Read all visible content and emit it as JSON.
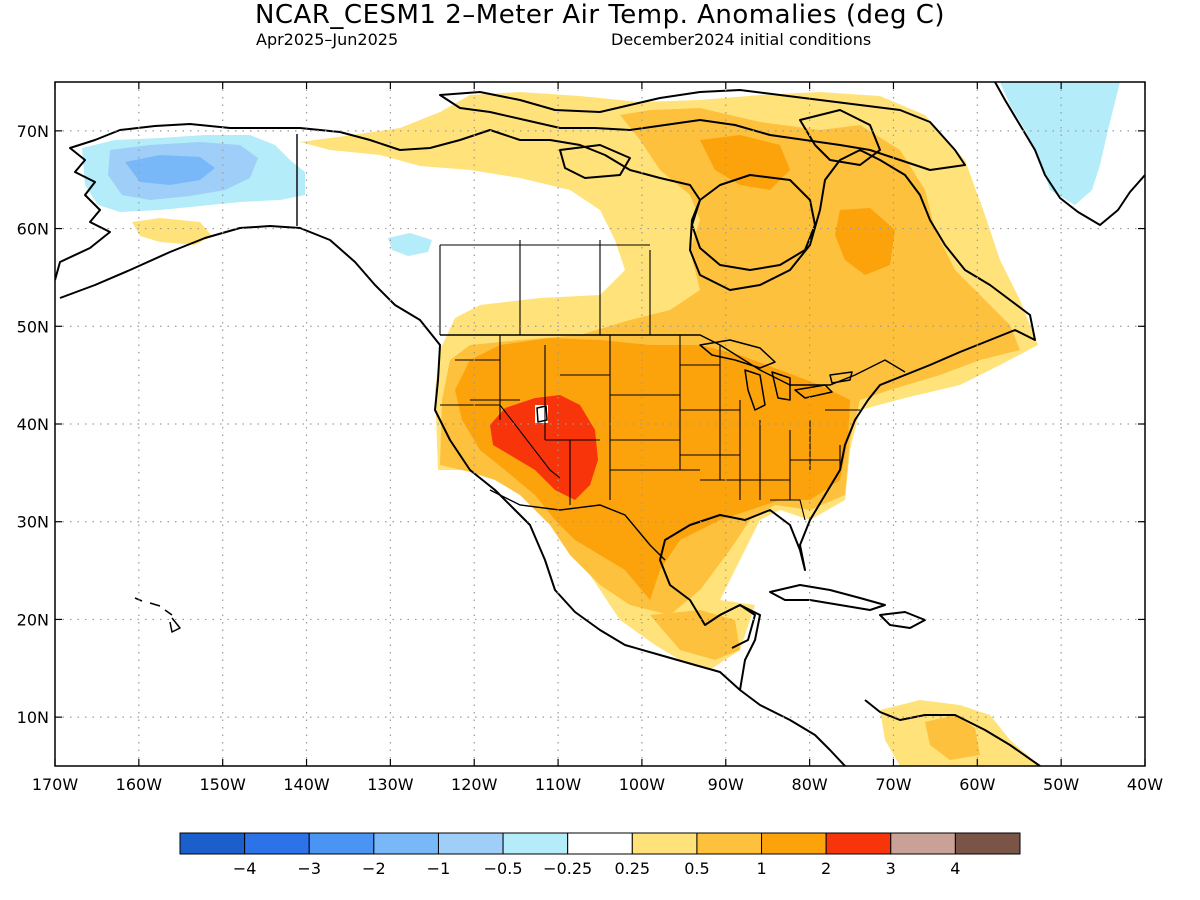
{
  "title": "NCAR_CESM1 2–Meter Air Temp. Anomalies (deg C)",
  "subtitle_left": "Apr2025–Jun2025",
  "subtitle_right": "December2024 initial conditions",
  "map": {
    "lon_range": [
      -170,
      -40
    ],
    "lat_range": [
      5,
      75
    ],
    "grid": true,
    "lat_labels": [
      "10N",
      "20N",
      "30N",
      "40N",
      "50N",
      "60N",
      "70N"
    ],
    "lat_values": [
      10,
      20,
      30,
      40,
      50,
      60,
      70
    ],
    "lon_labels": [
      "170W",
      "160W",
      "150W",
      "140W",
      "130W",
      "120W",
      "110W",
      "100W",
      "90W",
      "80W",
      "70W",
      "60W",
      "50W",
      "40W"
    ],
    "lon_values": [
      -170,
      -160,
      -150,
      -140,
      -130,
      -120,
      -110,
      -100,
      -90,
      -80,
      -70,
      -60,
      -50,
      -40
    ]
  },
  "colorbar": {
    "colors": [
      "#1a5fcc",
      "#2c72e8",
      "#4a95f3",
      "#79b8f8",
      "#9fcef9",
      "#b4ecfa",
      "#ffffff",
      "#ffe37a",
      "#fdc13d",
      "#fca20b",
      "#f8340b",
      "#c9a197",
      "#7b5448"
    ],
    "labels": [
      "−4",
      "−3",
      "−2",
      "−1",
      "−0.5",
      "−0.25",
      "0.25",
      "0.5",
      "1",
      "2",
      "3",
      "4"
    ]
  },
  "colors": {
    "anom_0_25_0_5": "#ffe37a",
    "anom_0_5_1": "#fdc13d",
    "anom_1_2": "#fca20b",
    "anom_2_3": "#f8340b",
    "anom_neg_0_25_0_5": "#b4ecfa",
    "anom_neg_0_5_1": "#9fcef9",
    "anom_neg_1_2": "#79b8f8"
  }
}
